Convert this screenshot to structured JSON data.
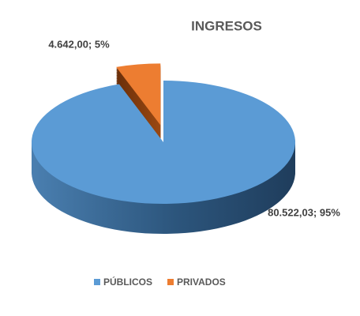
{
  "chart_data": {
    "type": "pie",
    "title": "INGRESOS",
    "categories": [
      "PÚBLICOS",
      "PRIVADOS"
    ],
    "values": [
      80522.03,
      4642.0
    ],
    "value_labels": [
      "80.522,03; 95%",
      "4.642,00; 5%"
    ],
    "colors": [
      "#5b9bd5",
      "#ed7d31"
    ],
    "legend": "bottom"
  }
}
